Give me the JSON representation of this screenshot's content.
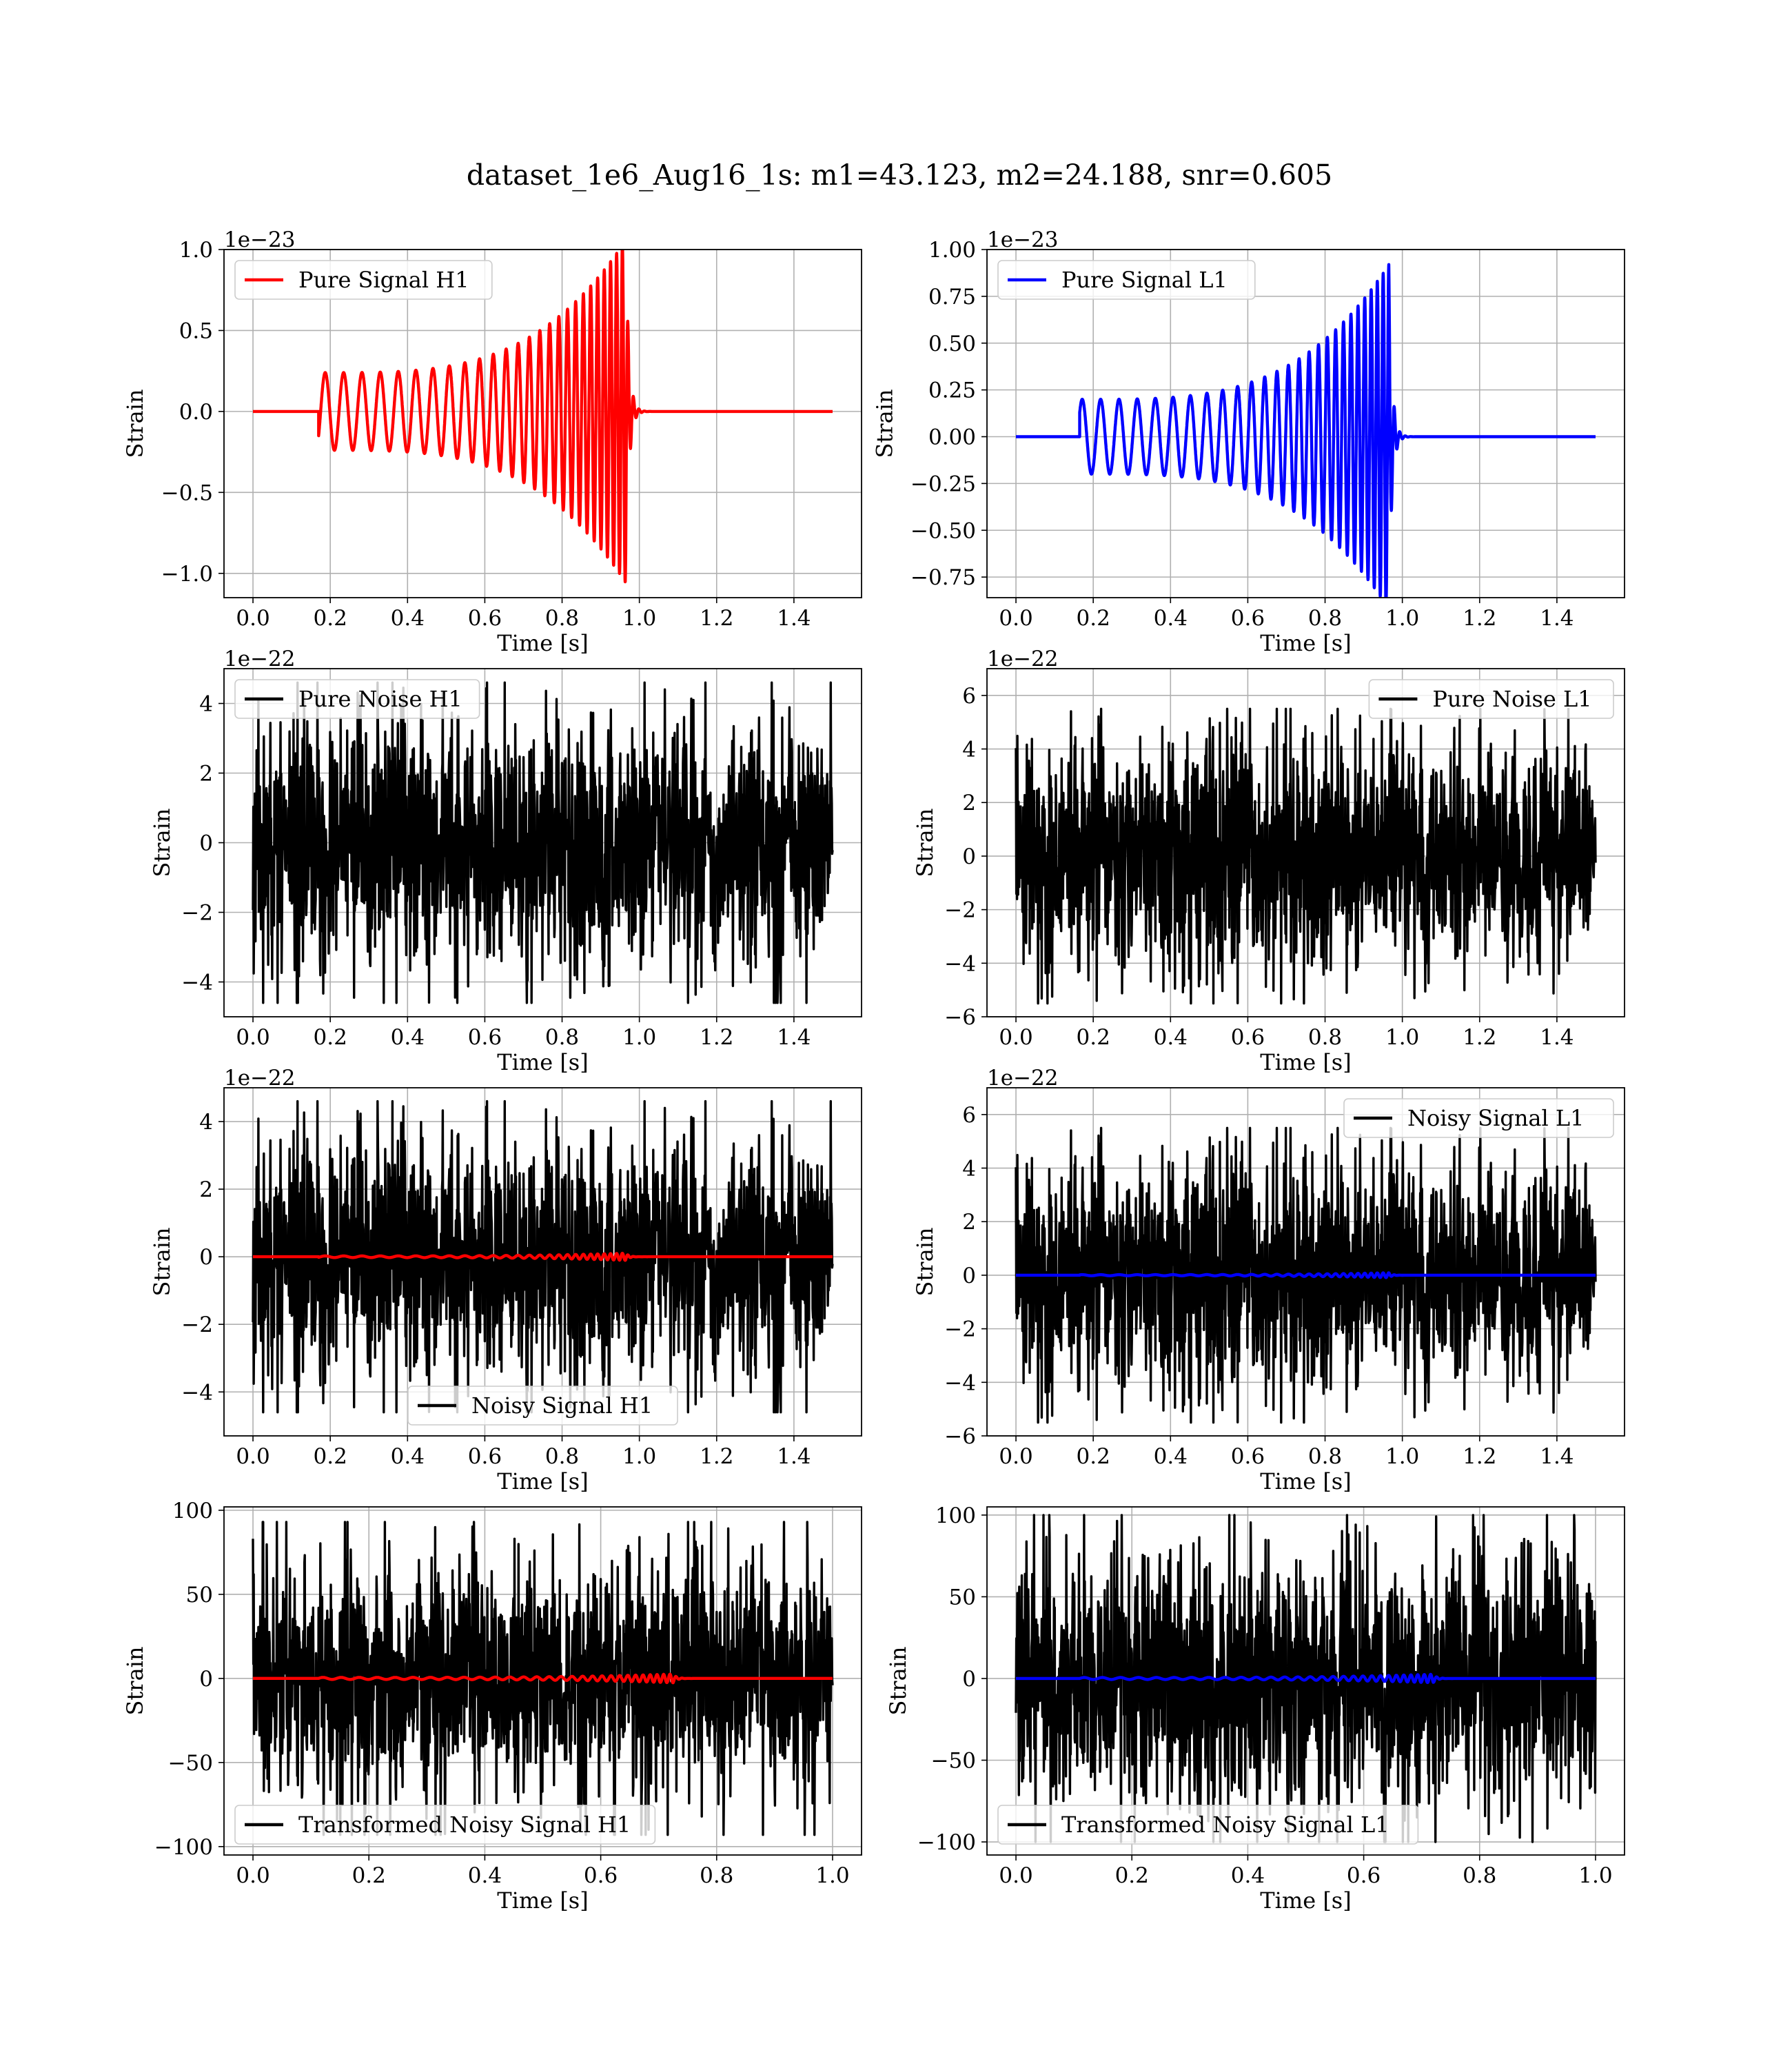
{
  "title": "dataset_1e6_Aug16_1s: m1=43.123, m2=24.188, snr=0.605",
  "chart_data": [
    {
      "type": "line",
      "id": "h1_pure_signal",
      "xlabel": "Time [s]",
      "ylabel": "Strain",
      "offset_text": "1e−23",
      "xlim": [
        -0.075,
        1.575
      ],
      "ylim": [
        -1.15,
        1.0
      ],
      "xticks": [
        0.0,
        0.2,
        0.4,
        0.6,
        0.8,
        1.0,
        1.2,
        1.4
      ],
      "xtick_labels": [
        "0.0",
        "0.2",
        "0.4",
        "0.6",
        "0.8",
        "1.0",
        "1.2",
        "1.4"
      ],
      "yticks": [
        -1.0,
        -0.5,
        0.0,
        0.5,
        1.0
      ],
      "ytick_labels": [
        "−1.0",
        "−0.5",
        "0.0",
        "0.5",
        "1.0"
      ],
      "grid": true,
      "legend_position": "upper-left",
      "series": [
        {
          "name": "Pure Signal H1",
          "color": "#ff0000",
          "kind": "chirp",
          "t_start": 0.17,
          "t_merge": 0.965,
          "t_end": 1.5,
          "start_amplitude": 0.24,
          "peak_amplitude": 1.06,
          "start_value": -0.15,
          "f_start": 21,
          "f_end": 70,
          "ringdown_tau": 0.008
        }
      ]
    },
    {
      "type": "line",
      "id": "l1_pure_signal",
      "xlabel": "Time [s]",
      "ylabel": "Strain",
      "offset_text": "1e−23",
      "xlim": [
        -0.075,
        1.575
      ],
      "ylim": [
        -0.86,
        1.0
      ],
      "xticks": [
        0.0,
        0.2,
        0.4,
        0.6,
        0.8,
        1.0,
        1.2,
        1.4
      ],
      "xtick_labels": [
        "0.0",
        "0.2",
        "0.4",
        "0.6",
        "0.8",
        "1.0",
        "1.2",
        "1.4"
      ],
      "yticks": [
        -0.75,
        -0.5,
        -0.25,
        0.0,
        0.25,
        0.5,
        0.75,
        1.0
      ],
      "ytick_labels": [
        "−0.75",
        "−0.50",
        "−0.25",
        "0.00",
        "0.25",
        "0.50",
        "0.75",
        "1.00"
      ],
      "grid": true,
      "legend_position": "upper-left",
      "series": [
        {
          "name": "Pure Signal L1",
          "color": "#0000ff",
          "kind": "chirp",
          "t_start": 0.165,
          "t_merge": 0.965,
          "t_end": 1.5,
          "start_amplitude": 0.2,
          "peak_amplitude": 0.92,
          "start_value": 0.13,
          "f_start": 21,
          "f_end": 70,
          "ringdown_tau": 0.008
        }
      ]
    },
    {
      "type": "line",
      "id": "h1_pure_noise",
      "xlabel": "Time [s]",
      "ylabel": "Strain",
      "offset_text": "1e−22",
      "xlim": [
        -0.075,
        1.575
      ],
      "ylim": [
        -5.0,
        5.0
      ],
      "xticks": [
        0.0,
        0.2,
        0.4,
        0.6,
        0.8,
        1.0,
        1.2,
        1.4
      ],
      "xtick_labels": [
        "0.0",
        "0.2",
        "0.4",
        "0.6",
        "0.8",
        "1.0",
        "1.2",
        "1.4"
      ],
      "yticks": [
        -4,
        -2,
        0,
        2,
        4
      ],
      "ytick_labels": [
        "−4",
        "−2",
        "0",
        "2",
        "4"
      ],
      "grid": true,
      "legend_position": "upper-left",
      "series": [
        {
          "name": "Pure Noise H1",
          "color": "#000000",
          "kind": "noise",
          "t_start": 0.0,
          "t_end": 1.5,
          "amplitude": 4.6,
          "seed": 11
        }
      ]
    },
    {
      "type": "line",
      "id": "l1_pure_noise",
      "xlabel": "Time [s]",
      "ylabel": "Strain",
      "offset_text": "1e−22",
      "xlim": [
        -0.075,
        1.575
      ],
      "ylim": [
        -6.0,
        7.0
      ],
      "xticks": [
        0.0,
        0.2,
        0.4,
        0.6,
        0.8,
        1.0,
        1.2,
        1.4
      ],
      "xtick_labels": [
        "0.0",
        "0.2",
        "0.4",
        "0.6",
        "0.8",
        "1.0",
        "1.2",
        "1.4"
      ],
      "yticks": [
        -6,
        -4,
        -2,
        0,
        2,
        4,
        6
      ],
      "ytick_labels": [
        "−6",
        "−4",
        "−2",
        "0",
        "2",
        "4",
        "6"
      ],
      "grid": true,
      "legend_position": "upper-right",
      "series": [
        {
          "name": "Pure Noise L1",
          "color": "#000000",
          "kind": "noise",
          "t_start": 0.0,
          "t_end": 1.5,
          "amplitude": 5.5,
          "seed": 23
        }
      ]
    },
    {
      "type": "line",
      "id": "h1_noisy_signal",
      "xlabel": "Time [s]",
      "ylabel": "Strain",
      "offset_text": "1e−22",
      "xlim": [
        -0.075,
        1.575
      ],
      "ylim": [
        -5.3,
        5.0
      ],
      "xticks": [
        0.0,
        0.2,
        0.4,
        0.6,
        0.8,
        1.0,
        1.2,
        1.4
      ],
      "xtick_labels": [
        "0.0",
        "0.2",
        "0.4",
        "0.6",
        "0.8",
        "1.0",
        "1.2",
        "1.4"
      ],
      "yticks": [
        -4,
        -2,
        0,
        2,
        4
      ],
      "ytick_labels": [
        "−4",
        "−2",
        "0",
        "2",
        "4"
      ],
      "grid": true,
      "legend_position": "lower-center",
      "series": [
        {
          "name": "Noisy Signal H1",
          "color": "#000000",
          "kind": "noise",
          "t_start": 0.0,
          "t_end": 1.5,
          "amplitude": 4.6,
          "seed": 11
        },
        {
          "color": "#ff0000",
          "kind": "chirp",
          "t_start": 0.17,
          "t_merge": 0.965,
          "t_end": 1.5,
          "start_amplitude": 0.024,
          "peak_amplitude": 0.106,
          "start_value": -0.015,
          "f_start": 21,
          "f_end": 70,
          "ringdown_tau": 0.008
        }
      ]
    },
    {
      "type": "line",
      "id": "l1_noisy_signal",
      "xlabel": "Time [s]",
      "ylabel": "Strain",
      "offset_text": "1e−22",
      "xlim": [
        -0.075,
        1.575
      ],
      "ylim": [
        -6.0,
        7.0
      ],
      "xticks": [
        0.0,
        0.2,
        0.4,
        0.6,
        0.8,
        1.0,
        1.2,
        1.4
      ],
      "xtick_labels": [
        "0.0",
        "0.2",
        "0.4",
        "0.6",
        "0.8",
        "1.0",
        "1.2",
        "1.4"
      ],
      "yticks": [
        -6,
        -4,
        -2,
        0,
        2,
        4,
        6
      ],
      "ytick_labels": [
        "−6",
        "−4",
        "−2",
        "0",
        "2",
        "4",
        "6"
      ],
      "grid": true,
      "legend_position": "upper-right",
      "series": [
        {
          "name": "Noisy Signal L1",
          "color": "#000000",
          "kind": "noise",
          "t_start": 0.0,
          "t_end": 1.5,
          "amplitude": 5.5,
          "seed": 23
        },
        {
          "color": "#0000ff",
          "kind": "chirp",
          "t_start": 0.165,
          "t_merge": 0.965,
          "t_end": 1.5,
          "start_amplitude": 0.02,
          "peak_amplitude": 0.092,
          "start_value": 0.013,
          "f_start": 21,
          "f_end": 70,
          "ringdown_tau": 0.008
        }
      ]
    },
    {
      "type": "line",
      "id": "h1_transformed",
      "xlabel": "Time [s]",
      "ylabel": "Strain",
      "offset_text": "",
      "xlim": [
        -0.05,
        1.05
      ],
      "ylim": [
        -105,
        102
      ],
      "xticks": [
        0.0,
        0.2,
        0.4,
        0.6,
        0.8,
        1.0
      ],
      "xtick_labels": [
        "0.0",
        "0.2",
        "0.4",
        "0.6",
        "0.8",
        "1.0"
      ],
      "yticks": [
        -100,
        -50,
        0,
        50,
        100
      ],
      "ytick_labels": [
        "−100",
        "−50",
        "0",
        "50",
        "100"
      ],
      "grid": true,
      "legend_position": "lower-left",
      "series": [
        {
          "name": "Transformed Noisy Signal H1",
          "color": "#000000",
          "kind": "noise",
          "t_start": 0.0,
          "t_end": 1.0,
          "amplitude": 93,
          "seed": 37
        },
        {
          "color": "#ff0000",
          "kind": "chirp",
          "t_start": 0.113,
          "t_merge": 0.725,
          "t_end": 1.0,
          "start_amplitude": 0.6,
          "peak_amplitude": 2.6,
          "start_value": 0.0,
          "f_start": 32,
          "f_end": 95,
          "ringdown_tau": 0.006
        }
      ]
    },
    {
      "type": "line",
      "id": "l1_transformed",
      "xlabel": "Time [s]",
      "ylabel": "Strain",
      "offset_text": "",
      "xlim": [
        -0.05,
        1.05
      ],
      "ylim": [
        -108,
        105
      ],
      "xticks": [
        0.0,
        0.2,
        0.4,
        0.6,
        0.8,
        1.0
      ],
      "xtick_labels": [
        "0.0",
        "0.2",
        "0.4",
        "0.6",
        "0.8",
        "1.0"
      ],
      "yticks": [
        -100,
        -50,
        0,
        50,
        100
      ],
      "ytick_labels": [
        "−100",
        "−50",
        "0",
        "50",
        "100"
      ],
      "grid": true,
      "legend_position": "lower-left",
      "series": [
        {
          "name": "Transformed Noisy Signal L1",
          "color": "#000000",
          "kind": "noise",
          "t_start": 0.0,
          "t_end": 1.0,
          "amplitude": 100,
          "seed": 41
        },
        {
          "color": "#0000ff",
          "kind": "chirp",
          "t_start": 0.11,
          "t_merge": 0.72,
          "t_end": 1.0,
          "start_amplitude": 0.6,
          "peak_amplitude": 2.6,
          "start_value": 0.0,
          "f_start": 32,
          "f_end": 95,
          "ringdown_tau": 0.006
        }
      ]
    }
  ]
}
